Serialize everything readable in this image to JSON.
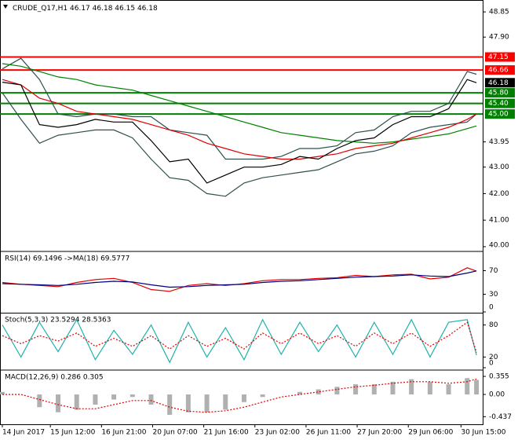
{
  "chart_data": {
    "type": "multi-panel",
    "symbol": "CRUDE_Q17,H1",
    "ohlc": [
      46.17,
      46.18,
      46.15,
      46.18
    ],
    "x": [
      0,
      12,
      24,
      36,
      48,
      60,
      72,
      84,
      96,
      108,
      120,
      132,
      144,
      156,
      168,
      180,
      192,
      204,
      216,
      228,
      240,
      252,
      264,
      276,
      288,
      300,
      306
    ],
    "xlim": [
      -1.5,
      310
    ],
    "xticks": [
      {
        "value": 0,
        "label": "14 Jun 2017"
      },
      {
        "value": 31,
        "label": "15 Jun 12:00"
      },
      {
        "value": 64,
        "label": "16 Jun 21:00"
      },
      {
        "value": 97,
        "label": "20 Jun 07:00"
      },
      {
        "value": 130,
        "label": "21 Jun 16:00"
      },
      {
        "value": 163,
        "label": "23 Jun 02:00"
      },
      {
        "value": 196,
        "label": "26 Jun 11:00"
      },
      {
        "value": 229,
        "label": "27 Jun 20:00"
      },
      {
        "value": 262,
        "label": "29 Jun 06:00"
      },
      {
        "value": 296,
        "label": "30 Jun 15:00"
      }
    ],
    "panels": [
      {
        "type": "line",
        "ylim": [
          39.88,
          49.15
        ],
        "yticks": [
          48.85,
          {
            "value": 47.9,
            "label": "47.90"
          },
          43.95,
          {
            "value": 43,
            "label": "43.00"
          },
          {
            "value": 42,
            "label": "42.00"
          },
          {
            "value": 41,
            "label": "41.00"
          },
          {
            "value": 40,
            "label": "40.00"
          }
        ],
        "levels": [
          {
            "value": 47.15,
            "color": "#ff0000"
          },
          {
            "value": 46.66,
            "color": "#ff0000"
          },
          {
            "value": 45.8,
            "label": "45.80",
            "color": "#008000"
          },
          {
            "value": 45.4,
            "label": "45.40",
            "color": "#008000"
          },
          {
            "value": 45,
            "label": "45.00",
            "color": "#008000"
          }
        ],
        "last_price": 46.18,
        "series": [
          {
            "style": "line",
            "color": "#2f4f4f",
            "values": [
              46.7,
              47.1,
              46.3,
              45.0,
              44.9,
              45.0,
              45.0,
              44.9,
              44.9,
              44.4,
              44.3,
              44.2,
              43.3,
              43.3,
              43.3,
              43.4,
              43.7,
              43.7,
              43.8,
              44.3,
              44.4,
              44.9,
              45.1,
              45.1,
              45.4,
              46.6,
              46.5
            ]
          },
          {
            "style": "line",
            "color": "#2f4f4f",
            "values": [
              45.8,
              44.8,
              43.9,
              44.2,
              44.3,
              44.4,
              44.4,
              44.1,
              43.3,
              42.6,
              42.5,
              42.0,
              41.9,
              42.4,
              42.6,
              42.7,
              42.8,
              42.9,
              43.2,
              43.5,
              43.6,
              43.8,
              44.3,
              44.5,
              44.6,
              44.7,
              45.0
            ]
          },
          {
            "style": "line",
            "color": "#008000",
            "values": [
              46.9,
              46.8,
              46.6,
              46.4,
              46.3,
              46.1,
              46.0,
              45.9,
              45.7,
              45.5,
              45.3,
              45.1,
              44.9,
              44.7,
              44.5,
              44.3,
              44.2,
              44.1,
              44.0,
              43.95,
              43.9,
              43.95,
              44.05,
              44.15,
              44.25,
              44.45,
              44.55
            ]
          },
          {
            "style": "line",
            "color": "#e00000",
            "values": [
              46.3,
              46.1,
              45.6,
              45.4,
              45.1,
              45.0,
              44.9,
              44.8,
              44.6,
              44.4,
              44.2,
              43.9,
              43.7,
              43.5,
              43.4,
              43.3,
              43.3,
              43.4,
              43.5,
              43.7,
              43.8,
              43.9,
              44.1,
              44.3,
              44.5,
              44.8,
              45.0
            ]
          },
          {
            "style": "line",
            "color": "#000000",
            "values": [
              46.2,
              46.1,
              44.6,
              44.5,
              44.6,
              44.8,
              44.7,
              44.7,
              44.0,
              43.2,
              43.3,
              42.4,
              42.7,
              43.0,
              43.0,
              43.1,
              43.4,
              43.3,
              43.7,
              44.0,
              44.1,
              44.6,
              44.9,
              44.9,
              45.2,
              46.3,
              46.18
            ]
          }
        ]
      },
      {
        "type": "line",
        "title": "RSI(14) 69.1496 ->MA(18) 69.5777",
        "ylim": [
          0,
          100
        ],
        "yticks": [
          70,
          30,
          0
        ],
        "series": [
          {
            "style": "line",
            "color": "#e00000",
            "values": [
              50,
              47,
              45,
              43,
              50,
              55,
              57,
              50,
              38,
              35,
              45,
              48,
              45,
              48,
              53,
              55,
              55,
              57,
              58,
              62,
              60,
              63,
              64,
              56,
              59,
              75,
              69.15
            ]
          },
          {
            "style": "line",
            "color": "#000080",
            "values": [
              48,
              47,
              46,
              45,
              47,
              50,
              52,
              51,
              46,
              42,
              43,
              45,
              46,
              47,
              50,
              52,
              53,
              55,
              57,
              59,
              60,
              61,
              63,
              61,
              60,
              66,
              69.58
            ]
          }
        ]
      },
      {
        "type": "line",
        "title": "Stoch(5,3,3) 23.5294 28.5363",
        "ylim": [
          0,
          100
        ],
        "yticks": [
          80,
          20,
          0
        ],
        "series": [
          {
            "style": "line",
            "color": "#20b2aa",
            "values": [
              80,
              20,
              85,
              30,
              90,
              15,
              70,
              25,
              80,
              10,
              85,
              20,
              75,
              15,
              90,
              25,
              85,
              30,
              80,
              20,
              85,
              25,
              90,
              20,
              85,
              90,
              23.53
            ]
          },
          {
            "style": "dotted",
            "color": "#e00000",
            "values": [
              60,
              45,
              60,
              50,
              65,
              40,
              55,
              40,
              60,
              35,
              60,
              40,
              55,
              35,
              65,
              45,
              65,
              45,
              60,
              40,
              65,
              45,
              65,
              40,
              60,
              85,
              28.54
            ]
          }
        ]
      },
      {
        "type": "bar",
        "title": "MACD(12,26,9) 0.286 0.305",
        "ylim": [
          -0.586,
          0.448
        ],
        "yticks": [
          0.355,
          {
            "value": 0,
            "label": "0.00"
          },
          -0.437
        ],
        "series": [
          {
            "style": "bar",
            "color": "#b0b0b0",
            "values": [
              0.05,
              0.0,
              -0.25,
              -0.35,
              -0.3,
              -0.2,
              -0.1,
              -0.05,
              -0.2,
              -0.4,
              -0.35,
              -0.35,
              -0.3,
              -0.15,
              -0.05,
              0.0,
              0.05,
              0.1,
              0.15,
              0.2,
              0.2,
              0.25,
              0.3,
              0.25,
              0.2,
              0.32,
              0.286
            ]
          },
          {
            "style": "dotted",
            "color": "#e00000",
            "values": [
              0.0,
              0.0,
              -0.1,
              -0.2,
              -0.28,
              -0.28,
              -0.2,
              -0.12,
              -0.12,
              -0.25,
              -0.33,
              -0.35,
              -0.32,
              -0.25,
              -0.15,
              -0.05,
              0.0,
              0.05,
              0.1,
              0.15,
              0.18,
              0.22,
              0.25,
              0.25,
              0.22,
              0.25,
              0.305
            ]
          }
        ]
      }
    ]
  }
}
